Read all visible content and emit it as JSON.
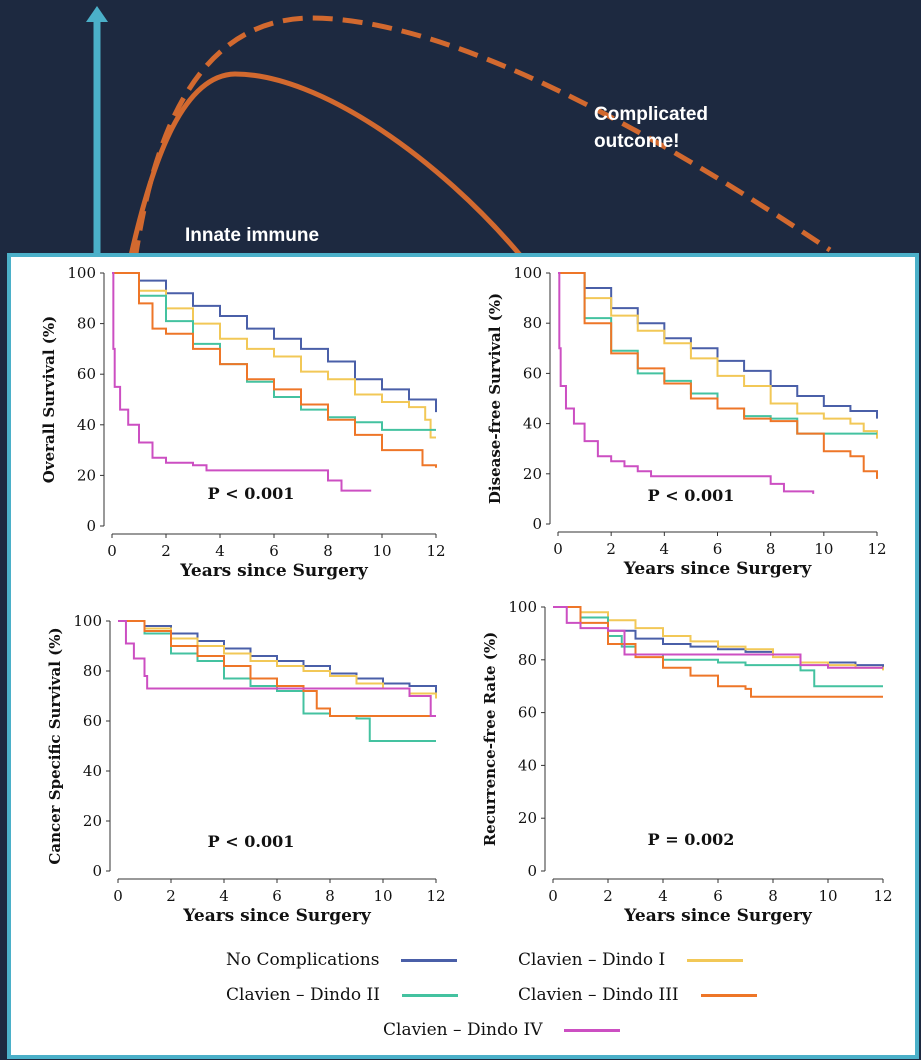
{
  "background": {
    "label_complicated": "Complicated outcome!",
    "label_innate": "Innate immune",
    "colors": {
      "background": "#1d2940",
      "arrow": "#4bb0c9",
      "curve": "#d2692f"
    }
  },
  "legend": [
    {
      "name": "No Complications",
      "color": "#4a5fa8"
    },
    {
      "name": "Clavien – Dindo I",
      "color": "#f2c857"
    },
    {
      "name": "Clavien – Dindo II",
      "color": "#44c2a0"
    },
    {
      "name": "Clavien – Dindo III",
      "color": "#ee7628"
    },
    {
      "name": "Clavien – Dindo IV",
      "color": "#cc4fc2"
    }
  ],
  "chart_data": [
    {
      "type": "line",
      "xlabel": "Years since Surgery",
      "ylabel": "Overall Survival (%)",
      "xlim": [
        0,
        12
      ],
      "ylim": [
        0,
        100
      ],
      "xticks": [
        0,
        2,
        4,
        6,
        8,
        10,
        12
      ],
      "yticks": [
        0,
        20,
        40,
        60,
        80,
        100
      ],
      "annotation": "P < 0.001",
      "grid": false,
      "series": [
        {
          "name": "No Complications",
          "x": [
            0,
            1,
            2,
            3,
            4,
            5,
            6,
            7,
            8,
            9,
            10,
            11,
            12
          ],
          "y": [
            100,
            97,
            92,
            87,
            83,
            78,
            74,
            70,
            65,
            58,
            54,
            50,
            45
          ]
        },
        {
          "name": "Clavien – Dindo I",
          "x": [
            0,
            1,
            2,
            3,
            4,
            5,
            6,
            7,
            8,
            9,
            10,
            11,
            11.6,
            11.8,
            12
          ],
          "y": [
            100,
            93,
            86,
            80,
            74,
            70,
            67,
            61,
            58,
            52,
            49,
            47,
            42,
            35,
            35
          ]
        },
        {
          "name": "Clavien – Dindo II",
          "x": [
            0,
            1,
            2,
            3,
            4,
            5,
            6,
            7,
            8,
            9,
            10,
            11,
            12
          ],
          "y": [
            100,
            91,
            81,
            72,
            64,
            57,
            51,
            46,
            43,
            41,
            38,
            38,
            38
          ]
        },
        {
          "name": "Clavien – Dindo III",
          "x": [
            0,
            1,
            1.5,
            2,
            3,
            4,
            5,
            6,
            7,
            8,
            9,
            10,
            11,
            11.5,
            12
          ],
          "y": [
            100,
            88,
            78,
            76,
            70,
            64,
            58,
            54,
            48,
            42,
            36,
            30,
            30,
            24,
            23
          ]
        },
        {
          "name": "Clavien – Dindo IV",
          "x": [
            0,
            0.05,
            0.1,
            0.3,
            0.6,
            1,
            1.5,
            2,
            3,
            3.5,
            5,
            7,
            8,
            8.5,
            9.6
          ],
          "y": [
            100,
            70,
            55,
            46,
            40,
            33,
            27,
            25,
            24,
            22,
            22,
            22,
            18,
            14,
            14
          ]
        }
      ]
    },
    {
      "type": "line",
      "xlabel": "Years since Surgery",
      "ylabel": "Disease-free Survival (%)",
      "xlim": [
        0,
        12
      ],
      "ylim": [
        0,
        100
      ],
      "xticks": [
        0,
        2,
        4,
        6,
        8,
        10,
        12
      ],
      "yticks": [
        0,
        20,
        40,
        60,
        80,
        100
      ],
      "annotation": "P < 0.001",
      "grid": false,
      "series": [
        {
          "name": "No Complications",
          "x": [
            0,
            1,
            2,
            3,
            4,
            5,
            6,
            7,
            8,
            9,
            10,
            11,
            12
          ],
          "y": [
            100,
            94,
            86,
            80,
            74,
            70,
            65,
            61,
            55,
            51,
            47,
            45,
            42
          ]
        },
        {
          "name": "Clavien – Dindo I",
          "x": [
            0,
            1,
            2,
            3,
            4,
            5,
            6,
            7,
            8,
            9,
            10,
            11,
            11.5,
            12
          ],
          "y": [
            100,
            90,
            83,
            77,
            72,
            66,
            59,
            55,
            48,
            44,
            42,
            40,
            37,
            34
          ]
        },
        {
          "name": "Clavien – Dindo II",
          "x": [
            0,
            1,
            2,
            3,
            4,
            5,
            6,
            7,
            8,
            9,
            10,
            11,
            12
          ],
          "y": [
            100,
            82,
            69,
            60,
            57,
            52,
            46,
            43,
            42,
            36,
            36,
            36,
            36
          ]
        },
        {
          "name": "Clavien – Dindo III",
          "x": [
            0,
            1,
            2,
            3,
            4,
            5,
            6,
            7,
            8,
            9,
            10,
            11,
            11.5,
            12
          ],
          "y": [
            100,
            80,
            68,
            62,
            56,
            50,
            46,
            42,
            41,
            36,
            29,
            27,
            21,
            18
          ]
        },
        {
          "name": "Clavien – Dindo IV",
          "x": [
            0,
            0.05,
            0.1,
            0.3,
            0.6,
            1,
            1.5,
            2,
            2.5,
            3,
            3.5,
            5,
            7,
            8,
            8.5,
            9.6
          ],
          "y": [
            100,
            70,
            55,
            46,
            40,
            33,
            27,
            25,
            23,
            21,
            19,
            19,
            19,
            16,
            13,
            12
          ]
        }
      ]
    },
    {
      "type": "line",
      "xlabel": "Years since Surgery",
      "ylabel": "Cancer Specific Survival (%)",
      "xlim": [
        0,
        12
      ],
      "ylim": [
        0,
        100
      ],
      "xticks": [
        0,
        2,
        4,
        6,
        8,
        10,
        12
      ],
      "yticks": [
        0,
        20,
        40,
        60,
        80,
        100
      ],
      "annotation": "P < 0.001",
      "grid": false,
      "series": [
        {
          "name": "No Complications",
          "x": [
            0,
            1,
            2,
            3,
            4,
            5,
            6,
            7,
            8,
            9,
            10,
            11,
            12
          ],
          "y": [
            100,
            98,
            95,
            92,
            89,
            86,
            84,
            82,
            79,
            77,
            75,
            74,
            70
          ]
        },
        {
          "name": "Clavien – Dindo I",
          "x": [
            0,
            1,
            2,
            3,
            4,
            5,
            6,
            7,
            8,
            9,
            10,
            11,
            12
          ],
          "y": [
            100,
            97,
            93,
            90,
            87,
            84,
            82,
            80,
            78,
            75,
            73,
            71,
            69
          ]
        },
        {
          "name": "Clavien – Dindo II",
          "x": [
            0,
            1,
            2,
            3,
            4,
            5,
            6,
            7,
            8,
            9,
            9.5,
            10,
            11,
            12
          ],
          "y": [
            100,
            95,
            87,
            84,
            77,
            74,
            72,
            63,
            62,
            61,
            52,
            52,
            52,
            52
          ]
        },
        {
          "name": "Clavien – Dindo III",
          "x": [
            0,
            1,
            2,
            3,
            4,
            5,
            6,
            7,
            7.5,
            8,
            9,
            10,
            11,
            12
          ],
          "y": [
            100,
            96,
            90,
            86,
            82,
            77,
            74,
            72,
            65,
            62,
            62,
            62,
            62,
            62
          ]
        },
        {
          "name": "Clavien – Dindo IV",
          "x": [
            0,
            0.3,
            0.6,
            1,
            1.1,
            5,
            9,
            10,
            11,
            11.5,
            11.8,
            12
          ],
          "y": [
            100,
            91,
            85,
            78,
            73,
            73,
            73,
            73,
            70,
            70,
            62,
            62
          ]
        }
      ]
    },
    {
      "type": "line",
      "xlabel": "Years since Surgery",
      "ylabel": "Recurrence-free Rate (%)",
      "xlim": [
        0,
        12
      ],
      "ylim": [
        0,
        100
      ],
      "xticks": [
        0,
        2,
        4,
        6,
        8,
        10,
        12
      ],
      "yticks": [
        0,
        20,
        40,
        60,
        80,
        100
      ],
      "annotation": "P = 0.002",
      "grid": false,
      "series": [
        {
          "name": "No Complications",
          "x": [
            0,
            1,
            2,
            3,
            4,
            5,
            6,
            7,
            8,
            9,
            10,
            11,
            12
          ],
          "y": [
            100,
            96,
            91,
            88,
            86,
            85,
            84,
            83,
            82,
            79,
            79,
            78,
            77
          ]
        },
        {
          "name": "Clavien – Dindo I",
          "x": [
            0,
            1,
            2,
            3,
            4,
            5,
            6,
            7,
            8,
            9,
            10,
            11,
            12
          ],
          "y": [
            100,
            98,
            95,
            92,
            89,
            87,
            85,
            84,
            81,
            79,
            78,
            77,
            76
          ]
        },
        {
          "name": "Clavien – Dindo II",
          "x": [
            0,
            1,
            2,
            2.5,
            3,
            4,
            5,
            6,
            7,
            8,
            9,
            9.5,
            10,
            11,
            12
          ],
          "y": [
            100,
            96,
            89,
            85,
            82,
            80,
            80,
            79,
            78,
            78,
            76,
            70,
            70,
            70,
            70
          ]
        },
        {
          "name": "Clavien – Dindo III",
          "x": [
            0,
            1,
            2,
            3,
            4,
            5,
            6,
            7,
            7.2,
            8,
            9,
            10,
            11,
            12
          ],
          "y": [
            100,
            94,
            86,
            81,
            77,
            74,
            70,
            69,
            66,
            66,
            66,
            66,
            66,
            66
          ]
        },
        {
          "name": "Clavien – Dindo IV",
          "x": [
            0,
            0.5,
            1,
            2,
            2.5,
            2.6,
            3,
            5,
            7,
            8,
            9,
            10,
            11,
            12
          ],
          "y": [
            100,
            94,
            92,
            91,
            91,
            82,
            82,
            82,
            82,
            82,
            78,
            77,
            77,
            77
          ]
        }
      ]
    }
  ]
}
